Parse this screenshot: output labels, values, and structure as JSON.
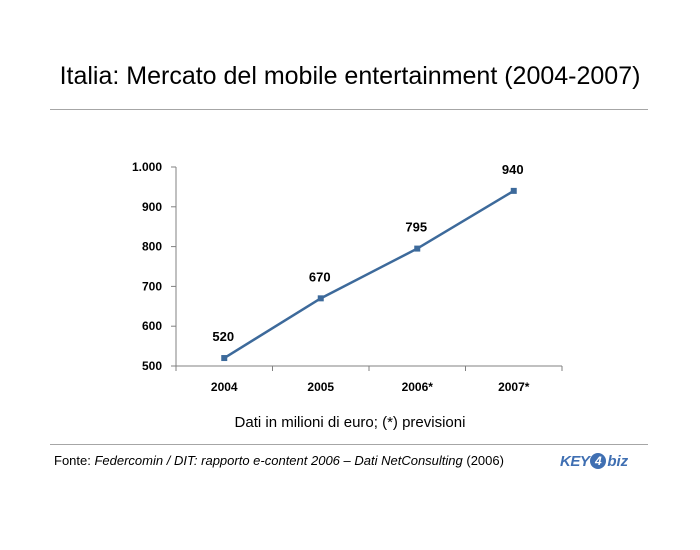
{
  "title": "Italia: Mercato del mobile entertainment (2004-2007)",
  "caption": "Dati in milioni di euro; (*) previsioni",
  "source": {
    "prefix": "Fonte: ",
    "italic": "Federcomin / DIT: rapporto e-content 2006 – Dati NetConsulting",
    "suffix": " (2006)"
  },
  "logo": {
    "part1": "KEY",
    "part2": "4",
    "part3": "biz"
  },
  "colors": {
    "line": "#3d6a9b",
    "logo": "#3f6fb2"
  },
  "chart_data": {
    "type": "line",
    "categories": [
      "2004",
      "2005",
      "2006*",
      "2007*"
    ],
    "series": [
      {
        "values": [
          520,
          670,
          795,
          940
        ]
      }
    ],
    "data_labels": [
      "520",
      "670",
      "795",
      "940"
    ],
    "y_ticks": [
      500,
      600,
      700,
      800,
      900,
      1000
    ],
    "y_tick_labels": [
      "500",
      "600",
      "700",
      "800",
      "900",
      "1.000"
    ],
    "ylim": [
      500,
      1000
    ],
    "xlabel": "",
    "ylabel": "",
    "grid": false,
    "legend": "none"
  }
}
